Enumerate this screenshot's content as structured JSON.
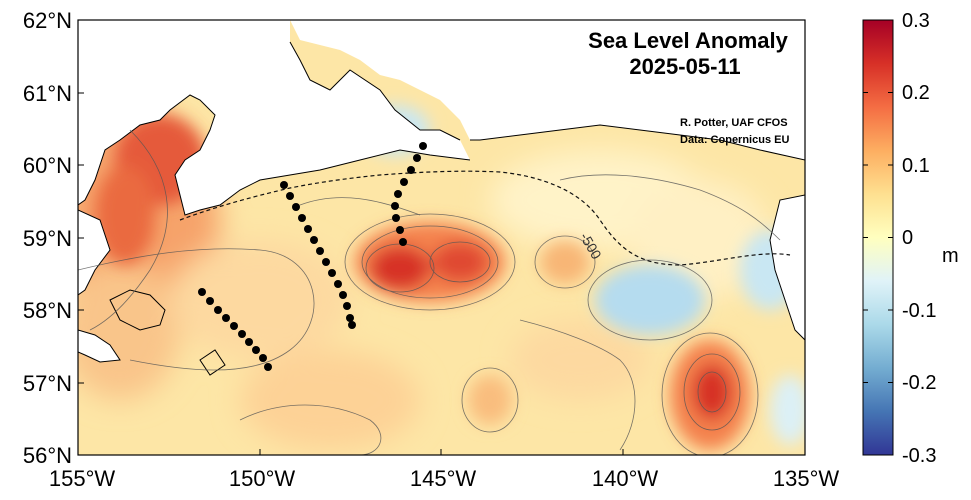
{
  "title": {
    "line1": "Sea Level Anomaly",
    "line2": "2025-05-11"
  },
  "credits": {
    "author": "R. Potter, UAF CFOS",
    "source": "Data: Copernicus EU"
  },
  "contour_label": "-500",
  "axes": {
    "x_ticks": [
      "155°W",
      "150°W",
      "145°W",
      "140°W",
      "135°W"
    ],
    "y_ticks": [
      "62°N",
      "61°N",
      "60°N",
      "59°N",
      "58°N",
      "57°N",
      "56°N"
    ]
  },
  "colorbar": {
    "unit": "m",
    "min": -0.3,
    "max": 0.3,
    "tick_labels": [
      "0.3",
      "0.2",
      "0.1",
      "0",
      "-0.1",
      "-0.2",
      "-0.3"
    ]
  },
  "colors": {
    "deep_red": "#a50026",
    "red": "#d73027",
    "orange": "#f46d43",
    "light_orange": "#fdae61",
    "yellow": "#fee090",
    "pale": "#ffffbf",
    "light_blue": "#e0f3f8",
    "sky_blue": "#abd9e9",
    "blue": "#74add1",
    "mid_blue": "#4575b4",
    "deep_blue": "#313695"
  }
}
